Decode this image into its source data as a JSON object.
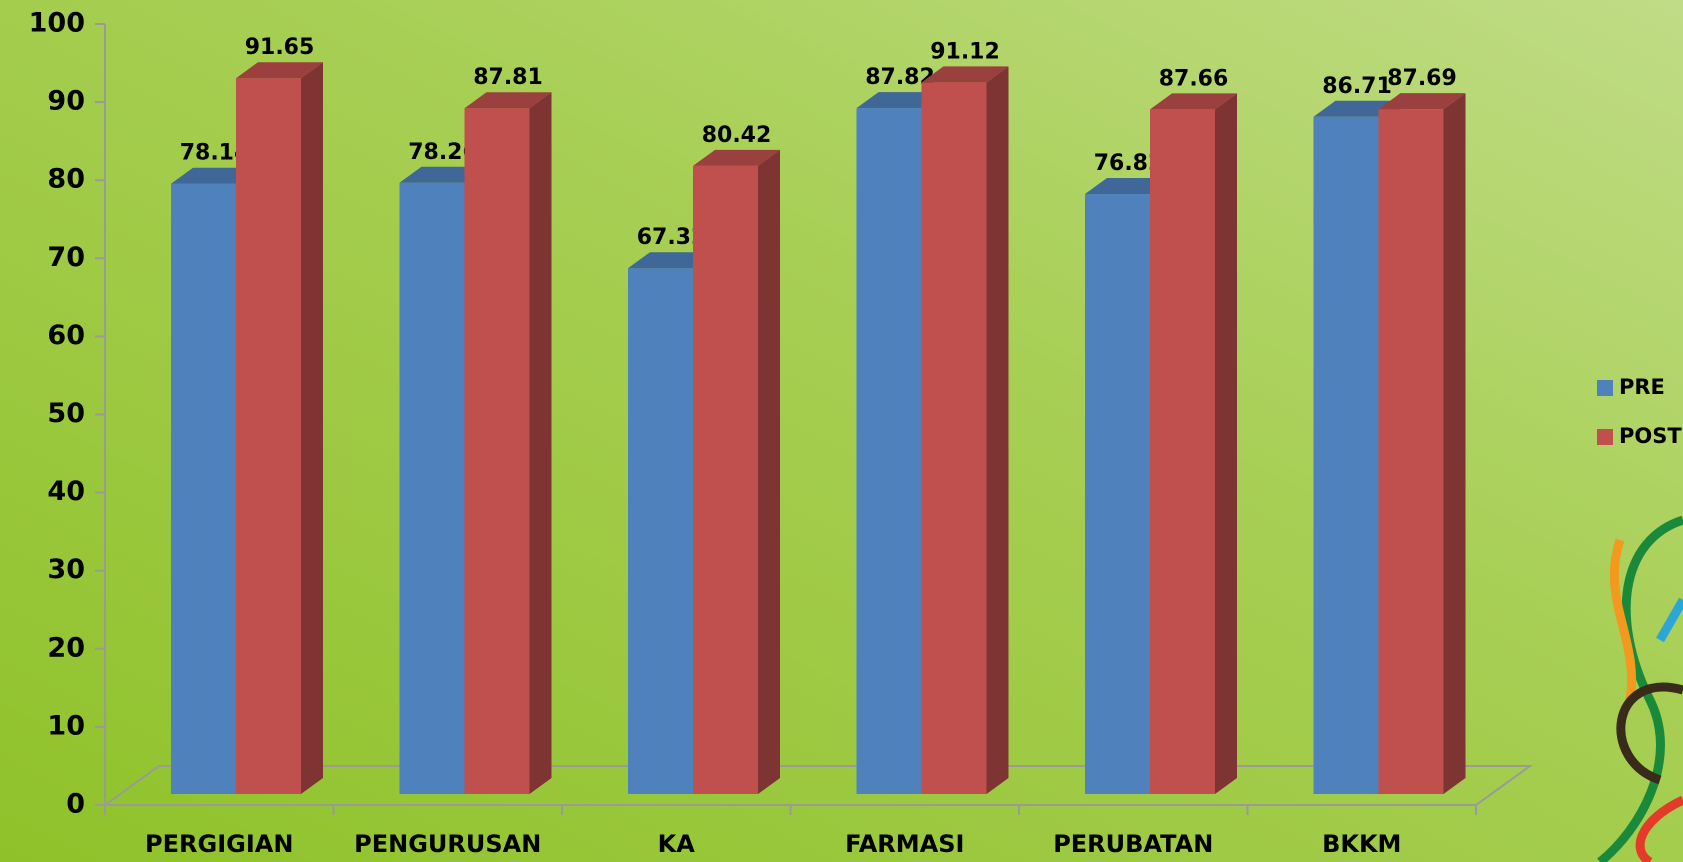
{
  "chart_data": {
    "type": "bar3d",
    "categories": [
      "PERGIGIAN",
      "PENGURUSAN",
      "KA",
      "FARMASI",
      "PERUBATAN",
      "BKKM"
    ],
    "series": [
      {
        "name": "PRE",
        "color": "#4f81bd",
        "values": [
          78.14,
          78.26,
          67.32,
          87.82,
          76.82,
          86.71
        ]
      },
      {
        "name": "POST",
        "color": "#c0504d",
        "values": [
          91.65,
          87.81,
          80.42,
          91.12,
          87.66,
          87.69
        ]
      }
    ],
    "ylim": [
      0,
      100
    ],
    "yticks": [
      0,
      10,
      20,
      30,
      40,
      50,
      60,
      70,
      80,
      90,
      100
    ],
    "legend": "right"
  }
}
